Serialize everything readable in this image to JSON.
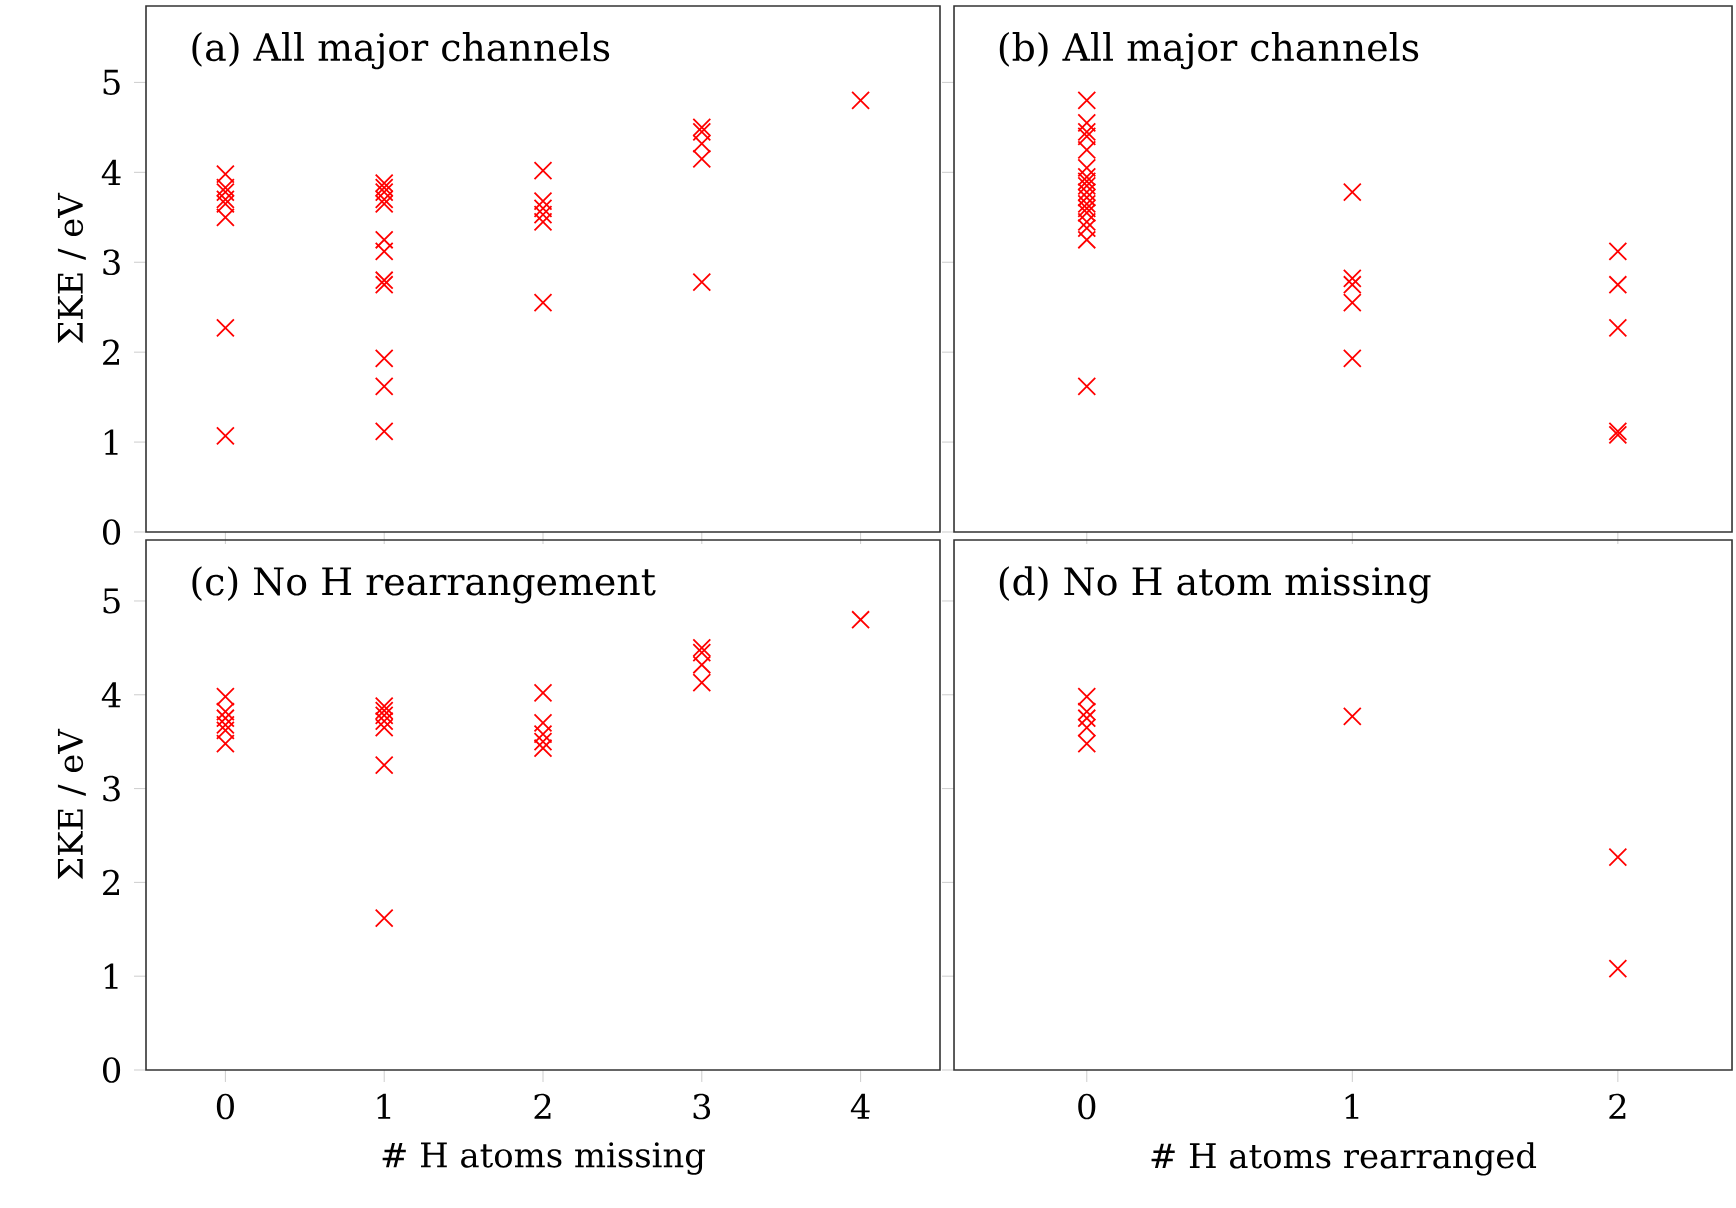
{
  "chart_data": [
    {
      "type": "scatter",
      "title": "(a) All major channels",
      "ylabel": "ΣKE / eV",
      "color": "#ff0000",
      "marker": "cross",
      "tick_labels": "y",
      "xlim": [
        -0.5,
        4.5
      ],
      "xticks": [
        0,
        1,
        2,
        3,
        4
      ],
      "ylim": [
        0,
        5.85
      ],
      "yticks": [
        0,
        1,
        2,
        3,
        4,
        5
      ],
      "x": [
        0,
        0,
        0,
        0,
        0,
        0,
        0,
        0,
        1,
        1,
        1,
        1,
        1,
        1,
        1,
        1,
        1,
        1,
        1,
        1,
        2,
        2,
        2,
        2,
        2,
        2,
        3,
        3,
        3,
        3,
        3,
        4
      ],
      "values": [
        3.98,
        3.83,
        3.78,
        3.7,
        3.65,
        3.5,
        2.27,
        1.07,
        3.88,
        3.83,
        3.78,
        3.7,
        3.65,
        3.25,
        3.12,
        2.8,
        2.75,
        1.93,
        1.62,
        1.12,
        4.02,
        3.68,
        3.6,
        3.53,
        3.45,
        2.55,
        4.5,
        4.45,
        4.32,
        4.15,
        2.78,
        4.8
      ]
    },
    {
      "type": "scatter",
      "title": "(b) All major channels",
      "color": "#ff0000",
      "marker": "cross",
      "tick_labels": false,
      "xlim": [
        -0.5,
        2.43
      ],
      "xticks": [
        0,
        1,
        2
      ],
      "ylim": [
        0,
        5.85
      ],
      "yticks": [
        0,
        1,
        2,
        3,
        4,
        5
      ],
      "x": [
        0,
        0,
        0,
        0,
        0,
        0,
        0,
        0,
        0,
        0,
        0,
        0,
        0,
        0,
        0,
        0,
        0,
        0,
        1,
        1,
        1,
        1,
        1,
        2,
        2,
        2,
        2,
        2
      ],
      "values": [
        4.8,
        4.55,
        4.45,
        4.4,
        4.25,
        4.05,
        3.95,
        3.9,
        3.85,
        3.78,
        3.72,
        3.65,
        3.6,
        3.55,
        3.45,
        3.38,
        3.25,
        1.62,
        3.78,
        2.82,
        2.75,
        2.55,
        1.93,
        3.12,
        2.75,
        2.27,
        1.12,
        1.08
      ]
    },
    {
      "type": "scatter",
      "title": "(c) No H rearrangement",
      "xlabel": "# H atoms missing",
      "ylabel": "ΣKE / eV",
      "color": "#ff0000",
      "marker": "cross",
      "xlim": [
        -0.5,
        4.5
      ],
      "xticks": [
        0,
        1,
        2,
        3,
        4
      ],
      "ylim": [
        0,
        5.65
      ],
      "yticks": [
        0,
        1,
        2,
        3,
        4,
        5
      ],
      "x": [
        0,
        0,
        0,
        0,
        0,
        0,
        1,
        1,
        1,
        1,
        1,
        1,
        1,
        2,
        2,
        2,
        2,
        2,
        3,
        3,
        3,
        3,
        4
      ],
      "values": [
        3.98,
        3.82,
        3.75,
        3.68,
        3.62,
        3.48,
        3.88,
        3.83,
        3.78,
        3.72,
        3.65,
        3.25,
        1.62,
        4.02,
        3.7,
        3.58,
        3.5,
        3.43,
        4.5,
        4.45,
        4.32,
        4.13,
        4.8
      ]
    },
    {
      "type": "scatter",
      "title": "(d) No H atom missing",
      "xlabel": "# H atoms rearranged",
      "color": "#ff0000",
      "marker": "cross",
      "tick_labels": "x",
      "xlim": [
        -0.5,
        2.43
      ],
      "xticks": [
        0,
        1,
        2
      ],
      "ylim": [
        0,
        5.65
      ],
      "yticks": [
        0,
        1,
        2,
        3,
        4,
        5
      ],
      "x": [
        0,
        0,
        0,
        0,
        0,
        1,
        2,
        2
      ],
      "values": [
        3.98,
        3.82,
        3.75,
        3.65,
        3.48,
        3.77,
        2.27,
        1.08
      ]
    }
  ]
}
